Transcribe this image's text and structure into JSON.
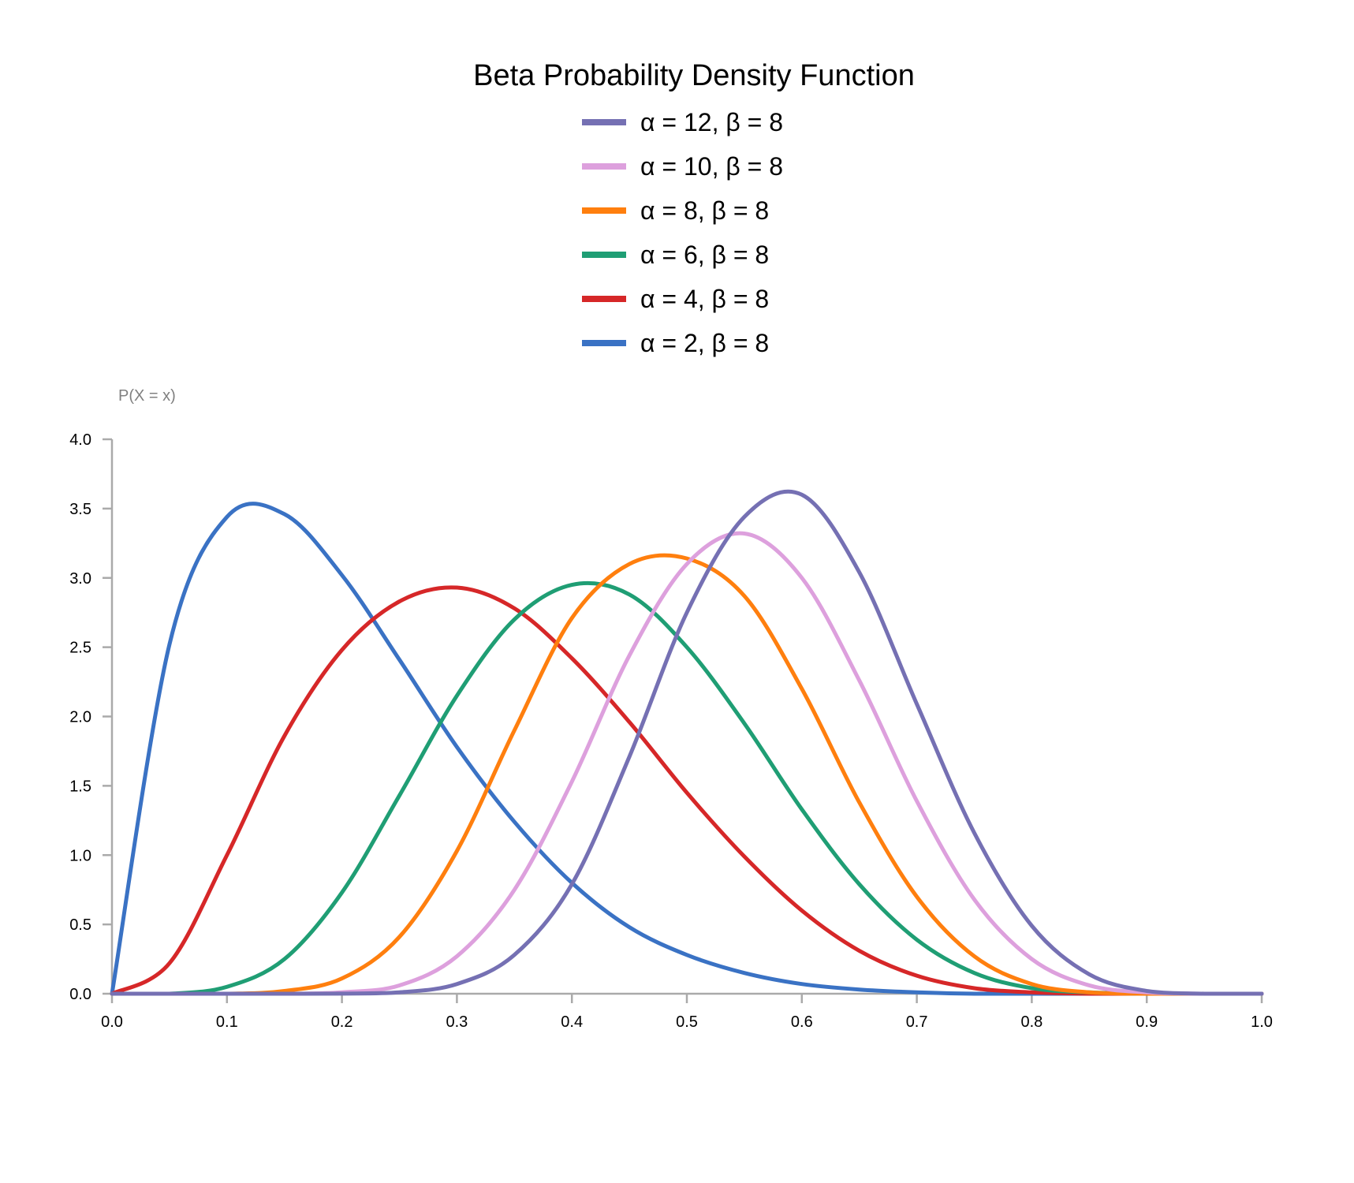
{
  "chart_data": {
    "type": "line",
    "title": "Beta Probability Density Function",
    "xlabel": "",
    "ylabel": "P(X = x)",
    "xlim": [
      0.0,
      1.0
    ],
    "ylim": [
      0.0,
      4.0
    ],
    "x_ticks": [
      "0.0",
      "0.1",
      "0.2",
      "0.3",
      "0.4",
      "0.5",
      "0.6",
      "0.7",
      "0.8",
      "0.9",
      "1.0"
    ],
    "y_ticks": [
      "0.0",
      "0.5",
      "1.0",
      "1.5",
      "2.0",
      "2.5",
      "3.0",
      "3.5",
      "4.0"
    ],
    "legend_position": "top-center",
    "grid": false,
    "x": [
      0.0,
      0.05,
      0.1,
      0.15,
      0.2,
      0.25,
      0.3,
      0.35,
      0.4,
      0.45,
      0.5,
      0.55,
      0.6,
      0.65,
      0.7,
      0.75,
      0.8,
      0.85,
      0.9,
      0.95,
      1.0
    ],
    "series": [
      {
        "name": "α = 12, β = 8",
        "color": "#7570b3",
        "values": [
          0.0,
          0.0,
          0.0,
          0.0,
          0.001,
          0.01,
          0.07,
          0.28,
          0.79,
          1.71,
          2.75,
          3.44,
          3.6,
          3.04,
          2.09,
          1.16,
          0.49,
          0.14,
          0.02,
          0.0,
          0.0
        ]
      },
      {
        "name": "α = 10, β = 8",
        "color": "#dda0dd",
        "values": [
          0.0,
          0.0,
          0.0,
          0.0,
          0.01,
          0.06,
          0.27,
          0.75,
          1.53,
          2.44,
          3.1,
          3.32,
          3.0,
          2.26,
          1.39,
          0.68,
          0.25,
          0.06,
          0.01,
          0.0,
          0.0
        ]
      },
      {
        "name": "α = 8, β = 8",
        "color": "#ff7f0e",
        "values": [
          0.0,
          0.0,
          0.0,
          0.02,
          0.11,
          0.41,
          1.03,
          1.9,
          2.71,
          3.1,
          3.14,
          2.87,
          2.2,
          1.38,
          0.7,
          0.27,
          0.07,
          0.01,
          0.0,
          0.0,
          0.0
        ]
      },
      {
        "name": "α = 6, β = 8",
        "color": "#1f9e74",
        "values": [
          0.0,
          0.0,
          0.05,
          0.25,
          0.73,
          1.43,
          2.15,
          2.7,
          2.95,
          2.88,
          2.5,
          1.95,
          1.33,
          0.79,
          0.39,
          0.15,
          0.04,
          0.01,
          0.0,
          0.0,
          0.0
        ]
      },
      {
        "name": "α = 4, β = 8",
        "color": "#d62728",
        "values": [
          0.0,
          0.22,
          1.0,
          1.86,
          2.48,
          2.83,
          2.93,
          2.78,
          2.42,
          1.96,
          1.45,
          0.99,
          0.6,
          0.31,
          0.13,
          0.04,
          0.01,
          0.0,
          0.0,
          0.0,
          0.0
        ]
      },
      {
        "name": "α = 2, β = 8",
        "color": "#3a72c4",
        "values": [
          0.0,
          2.52,
          3.44,
          3.46,
          3.02,
          2.41,
          1.78,
          1.24,
          0.8,
          0.48,
          0.28,
          0.15,
          0.07,
          0.03,
          0.01,
          0.0,
          0.0,
          0.0,
          0.0,
          0.0,
          0.0
        ]
      }
    ]
  }
}
